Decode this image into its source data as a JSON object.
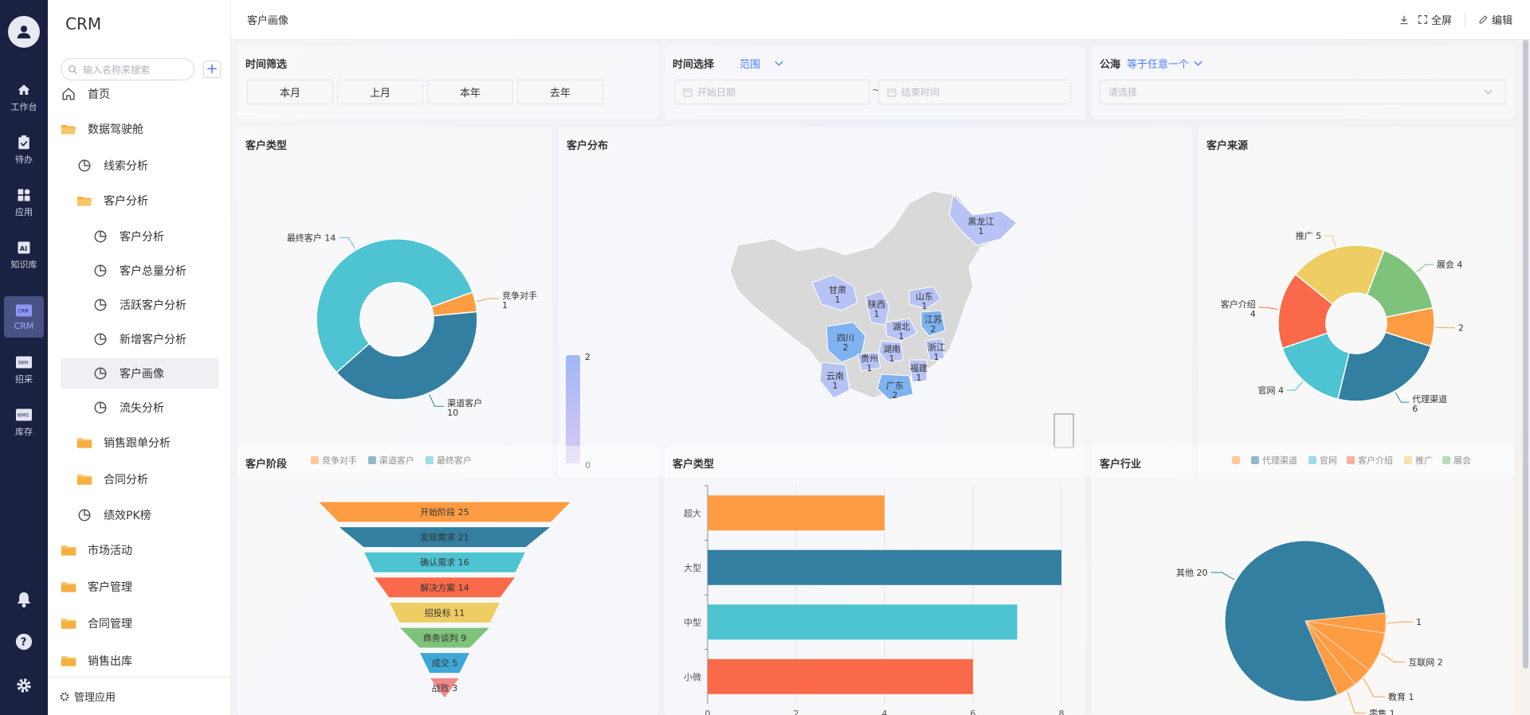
{
  "rail": {
    "items": [
      {
        "label": "工作台",
        "icon": "home-icon"
      },
      {
        "label": "待办",
        "icon": "clipboard-icon"
      },
      {
        "label": "应用",
        "icon": "apps-icon"
      },
      {
        "label": "知识库",
        "icon": "knowledge-icon"
      },
      {
        "label": "CRM",
        "icon": "crm-icon"
      },
      {
        "label": "招采",
        "icon": "srm-icon"
      },
      {
        "label": "库存",
        "icon": "wms-icon"
      }
    ],
    "crm_badge": "CRM",
    "srm_badge": "SRM",
    "wms_badge": "WMS"
  },
  "sidebar": {
    "brand": "CRM",
    "search_placeholder": "输入名称来搜索",
    "items": [
      {
        "label": "首页"
      },
      {
        "label": "数据驾驶舱"
      },
      {
        "label": "线索分析"
      },
      {
        "label": "客户分析"
      },
      {
        "label": "客户分析"
      },
      {
        "label": "客户总量分析"
      },
      {
        "label": "活跃客户分析"
      },
      {
        "label": "新增客户分析"
      },
      {
        "label": "客户画像"
      },
      {
        "label": "流失分析"
      },
      {
        "label": "销售跟单分析"
      },
      {
        "label": "合同分析"
      },
      {
        "label": "绩效PK榜"
      },
      {
        "label": "市场活动"
      },
      {
        "label": "客户管理"
      },
      {
        "label": "合同管理"
      },
      {
        "label": "销售出库"
      }
    ],
    "footer": "管理应用"
  },
  "topbar": {
    "title": "客户画像",
    "fullscreen": "全屏",
    "edit": "编辑"
  },
  "filters": {
    "time_filter": {
      "title": "时间筛选",
      "buttons": [
        "本月",
        "上月",
        "本年",
        "去年"
      ]
    },
    "time_select": {
      "title": "时间选择",
      "mode": "范围",
      "start_placeholder": "开始日期",
      "separator": "~",
      "end_placeholder": "结束时间"
    },
    "pool": {
      "title": "公海",
      "operator": "等于任意一个",
      "placeholder": "请选择"
    }
  },
  "panels": {
    "customer_type_donut": "客户类型",
    "customer_distribution": "客户分布",
    "customer_source": "客户来源",
    "customer_stage": "客户阶段",
    "customer_type_bar": "客户类型",
    "customer_industry": "客户行业"
  },
  "colors": {
    "orange": "#fe9c43",
    "blue": "#337fa1",
    "cyan": "#4ec3d1",
    "red": "#fa6a4a",
    "yellow": "#eecd63",
    "green": "#7fc27b",
    "accent": "#4d7cfe"
  },
  "chart_data": [
    {
      "type": "pie",
      "title": "客户类型",
      "variant": "donut",
      "slices": [
        {
          "name": "竞争对手",
          "value": 1,
          "color": "#fe9c43"
        },
        {
          "name": "渠道客户",
          "value": 10,
          "color": "#337fa1"
        },
        {
          "name": "最终客户",
          "value": 14,
          "color": "#4ec3d1"
        }
      ],
      "legend": [
        "竞争对手",
        "渠道客户",
        "最终客户"
      ],
      "legend_position": "bottom"
    },
    {
      "type": "map",
      "title": "客户分布",
      "regions": [
        {
          "name": "黑龙江",
          "value": 1
        },
        {
          "name": "甘肃",
          "value": 1
        },
        {
          "name": "陕西",
          "value": 1
        },
        {
          "name": "山东",
          "value": 1
        },
        {
          "name": "四川",
          "value": 2
        },
        {
          "name": "湖北",
          "value": 1
        },
        {
          "name": "江苏",
          "value": 2
        },
        {
          "name": "浙江",
          "value": 1
        },
        {
          "name": "湖南",
          "value": 1
        },
        {
          "name": "贵州",
          "value": 1
        },
        {
          "name": "云南",
          "value": 1
        },
        {
          "name": "福建",
          "value": 1
        },
        {
          "name": "广东",
          "value": 2
        }
      ],
      "visual_map": {
        "min": 0,
        "max": 2
      }
    },
    {
      "type": "pie",
      "title": "客户来源",
      "variant": "donut",
      "slices": [
        {
          "name": "",
          "value": 2,
          "color": "#fe9c43"
        },
        {
          "name": "代理渠道",
          "value": 6,
          "color": "#337fa1"
        },
        {
          "name": "官网",
          "value": 4,
          "color": "#4ec3d1"
        },
        {
          "name": "客户介绍",
          "value": 4,
          "color": "#fa6a4a"
        },
        {
          "name": "推广",
          "value": 5,
          "color": "#eecd63"
        },
        {
          "name": "展会",
          "value": 4,
          "color": "#7fc27b"
        }
      ],
      "legend": [
        "",
        "代理渠道",
        "官网",
        "客户介绍",
        "推广",
        "展会"
      ],
      "legend_position": "bottom"
    },
    {
      "type": "funnel",
      "title": "客户阶段",
      "stages": [
        {
          "name": "开始阶段",
          "value": 25,
          "color": "#fe9c43"
        },
        {
          "name": "发现需求",
          "value": 21,
          "color": "#337fa1"
        },
        {
          "name": "确认需求",
          "value": 16,
          "color": "#4ec3d1"
        },
        {
          "name": "解决方案",
          "value": 14,
          "color": "#fa6a4a"
        },
        {
          "name": "招投标",
          "value": 11,
          "color": "#eecd63"
        },
        {
          "name": "商务谈判",
          "value": 9,
          "color": "#7fc27b"
        },
        {
          "name": "成交",
          "value": 5,
          "color": "#3fa7d6"
        },
        {
          "name": "战败",
          "value": 3,
          "color": "#f08a8a"
        }
      ]
    },
    {
      "type": "bar",
      "title": "客户类型",
      "orientation": "horizontal",
      "categories": [
        "超大",
        "大型",
        "中型",
        "小微"
      ],
      "values": [
        4,
        8,
        7,
        6
      ],
      "colors": [
        "#fe9c43",
        "#337fa1",
        "#4ec3d1",
        "#fa6a4a"
      ],
      "x_ticks": [
        "0",
        "2",
        "4",
        "6",
        "8"
      ],
      "xlim": [
        0,
        8
      ],
      "grid": true
    },
    {
      "type": "pie",
      "title": "客户行业",
      "slices": [
        {
          "name": "其他",
          "value": 20,
          "color": "#337fa1"
        },
        {
          "name": "",
          "value": 1,
          "color": "#fe9c43"
        },
        {
          "name": "互联网",
          "value": 2,
          "color": "#fe9c43"
        },
        {
          "name": "教育",
          "value": 1,
          "color": "#fe9c43"
        },
        {
          "name": "零售",
          "value": 1,
          "color": "#fe9c43"
        }
      ]
    }
  ]
}
